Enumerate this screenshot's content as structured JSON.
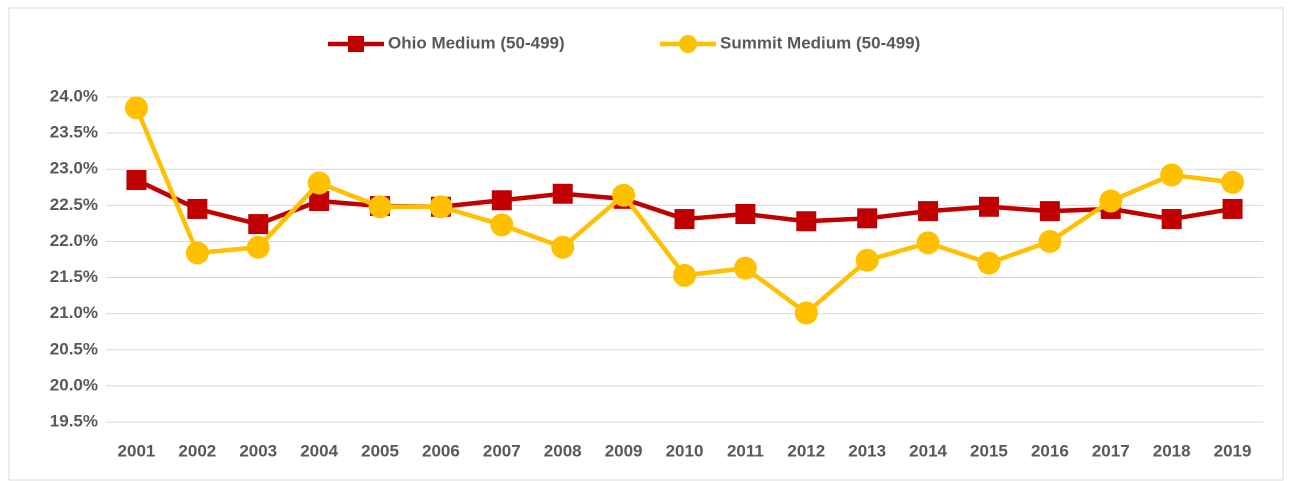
{
  "chart_data": {
    "type": "line",
    "categories": [
      "2001",
      "2002",
      "2003",
      "2004",
      "2005",
      "2006",
      "2007",
      "2008",
      "2009",
      "2010",
      "2011",
      "2012",
      "2013",
      "2014",
      "2015",
      "2016",
      "2017",
      "2018",
      "2019"
    ],
    "series": [
      {
        "name": "Ohio Medium (50-499)",
        "color": "#c00000",
        "marker": "square",
        "values": [
          22.85,
          22.45,
          22.24,
          22.56,
          22.49,
          22.48,
          22.57,
          22.66,
          22.59,
          22.31,
          22.38,
          22.28,
          22.32,
          22.42,
          22.48,
          22.42,
          22.45,
          22.31,
          22.45
        ]
      },
      {
        "name": "Summit Medium (50-499)",
        "color": "#ffc000",
        "marker": "circle",
        "values": [
          23.85,
          21.84,
          21.92,
          22.81,
          22.48,
          22.48,
          22.23,
          21.92,
          22.64,
          21.53,
          21.63,
          21.01,
          21.74,
          21.98,
          21.7,
          22.0,
          22.56,
          22.92,
          22.82
        ]
      }
    ],
    "ylim": [
      19.5,
      24.0
    ],
    "yticks": [
      {
        "value": 19.5,
        "label": "19.5%"
      },
      {
        "value": 20.0,
        "label": "20.0%"
      },
      {
        "value": 20.5,
        "label": "20.5%"
      },
      {
        "value": 21.0,
        "label": "21.0%"
      },
      {
        "value": 21.5,
        "label": "21.5%"
      },
      {
        "value": 22.0,
        "label": "22.0%"
      },
      {
        "value": 22.5,
        "label": "22.5%"
      },
      {
        "value": 23.0,
        "label": "23.0%"
      },
      {
        "value": 23.5,
        "label": "23.5%"
      },
      {
        "value": 24.0,
        "label": "24.0%"
      }
    ],
    "grid": true,
    "legend": "top"
  }
}
